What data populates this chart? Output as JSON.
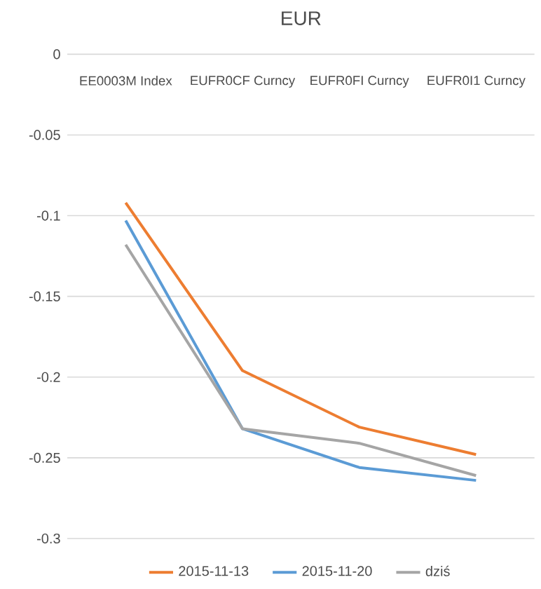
{
  "chart_data": {
    "type": "line",
    "title": "EUR",
    "categories": [
      "EE0003M Index",
      "EUFR0CF Curncy",
      "EUFR0FI Curncy",
      "EUFR0I1 Curncy"
    ],
    "series": [
      {
        "name": "2015-11-13",
        "color": "#ed7d31",
        "values": [
          -0.092,
          -0.196,
          -0.231,
          -0.248
        ]
      },
      {
        "name": "2015-11-20",
        "color": "#5b9bd5",
        "values": [
          -0.103,
          -0.232,
          -0.256,
          -0.264
        ]
      },
      {
        "name": "dziś",
        "color": "#a5a5a5",
        "values": [
          -0.118,
          -0.232,
          -0.241,
          -0.261
        ]
      }
    ],
    "ylim": [
      -0.3,
      0
    ],
    "yticks": [
      -0.3,
      -0.25,
      -0.2,
      -0.15,
      -0.1,
      -0.05,
      0
    ],
    "grid": "y",
    "legend": "bottom",
    "marker": "none",
    "line_style": "solid"
  }
}
